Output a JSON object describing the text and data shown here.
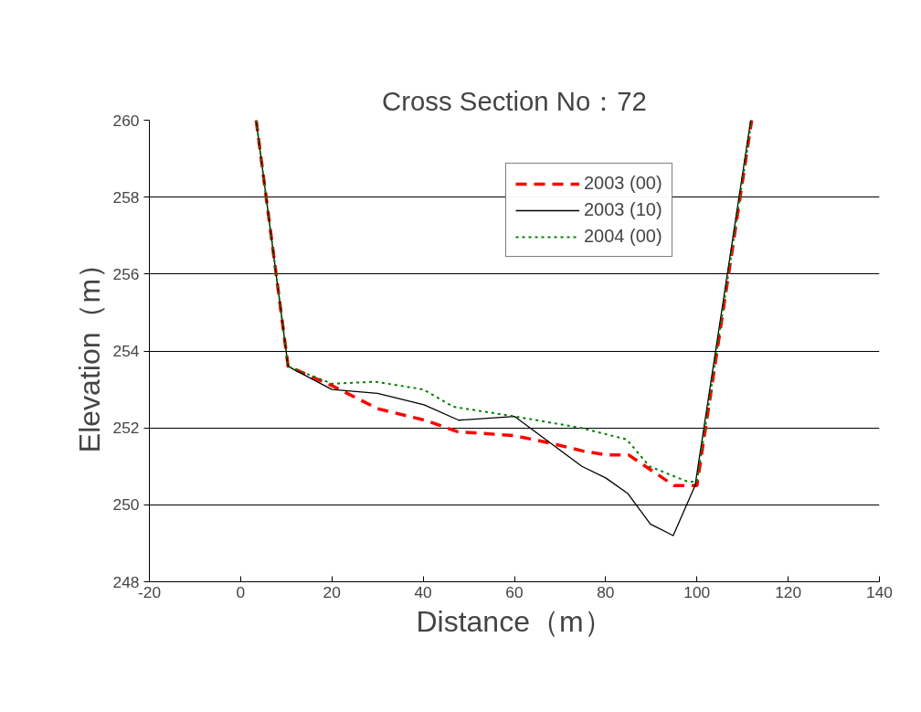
{
  "chart_data": {
    "type": "line",
    "title": "Cross Section No：72",
    "xlabel": "Distance（m）",
    "ylabel": "Elevation（m）",
    "xlim": [
      -20,
      140
    ],
    "xticks": [
      -20,
      0,
      20,
      40,
      60,
      80,
      100,
      120,
      140
    ],
    "ylim": [
      248,
      260
    ],
    "yticks": [
      248,
      250,
      252,
      254,
      256,
      258,
      260
    ],
    "grid": "y",
    "legend": "top right",
    "series": [
      {
        "name": "2003 (00)",
        "color": "#ff0000",
        "line_style": "dashed",
        "x": [
          3.4,
          10.4,
          20,
          30,
          40.4,
          47.6,
          60,
          68,
          75,
          80,
          85,
          90,
          95,
          100,
          112
        ],
        "values": [
          260,
          253.6,
          253.1,
          252.5,
          252.2,
          251.9,
          251.8,
          251.6,
          251.4,
          251.3,
          251.3,
          250.9,
          250.5,
          250.5,
          260
        ]
      },
      {
        "name": "2003 (10)",
        "color": "#000000",
        "line_style": "solid",
        "x": [
          3.4,
          10.4,
          20,
          30,
          40.2,
          47.8,
          60,
          74.8,
          80,
          84.8,
          89.8,
          94.8,
          99.6,
          111.8
        ],
        "values": [
          260,
          253.6,
          253.0,
          252.9,
          252.6,
          252.2,
          252.3,
          251.0,
          250.7,
          250.3,
          249.5,
          249.2,
          250.5,
          260
        ]
      },
      {
        "name": "2004 (00)",
        "color": "#008000",
        "line_style": "dotted",
        "x": [
          3.4,
          10.4,
          20,
          29.6,
          40,
          46.6,
          60,
          74.6,
          84.6,
          89.6,
          98,
          100,
          112
        ],
        "values": [
          260,
          253.6,
          253.15,
          253.2,
          253.0,
          252.55,
          252.3,
          252.0,
          251.7,
          251.0,
          250.6,
          250.6,
          260
        ]
      }
    ]
  }
}
